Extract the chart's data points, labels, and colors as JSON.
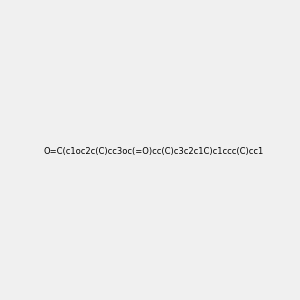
{
  "smiles": "O=C(c1oc2c(C)cc3oc(=O)cc(C)c3c2c1C)c1ccc(C)cc1",
  "title": "",
  "bg_color": "#f0f0f0",
  "atom_color_O": "#ff0000",
  "atom_color_C": "#000000",
  "img_size": [
    300,
    300
  ]
}
